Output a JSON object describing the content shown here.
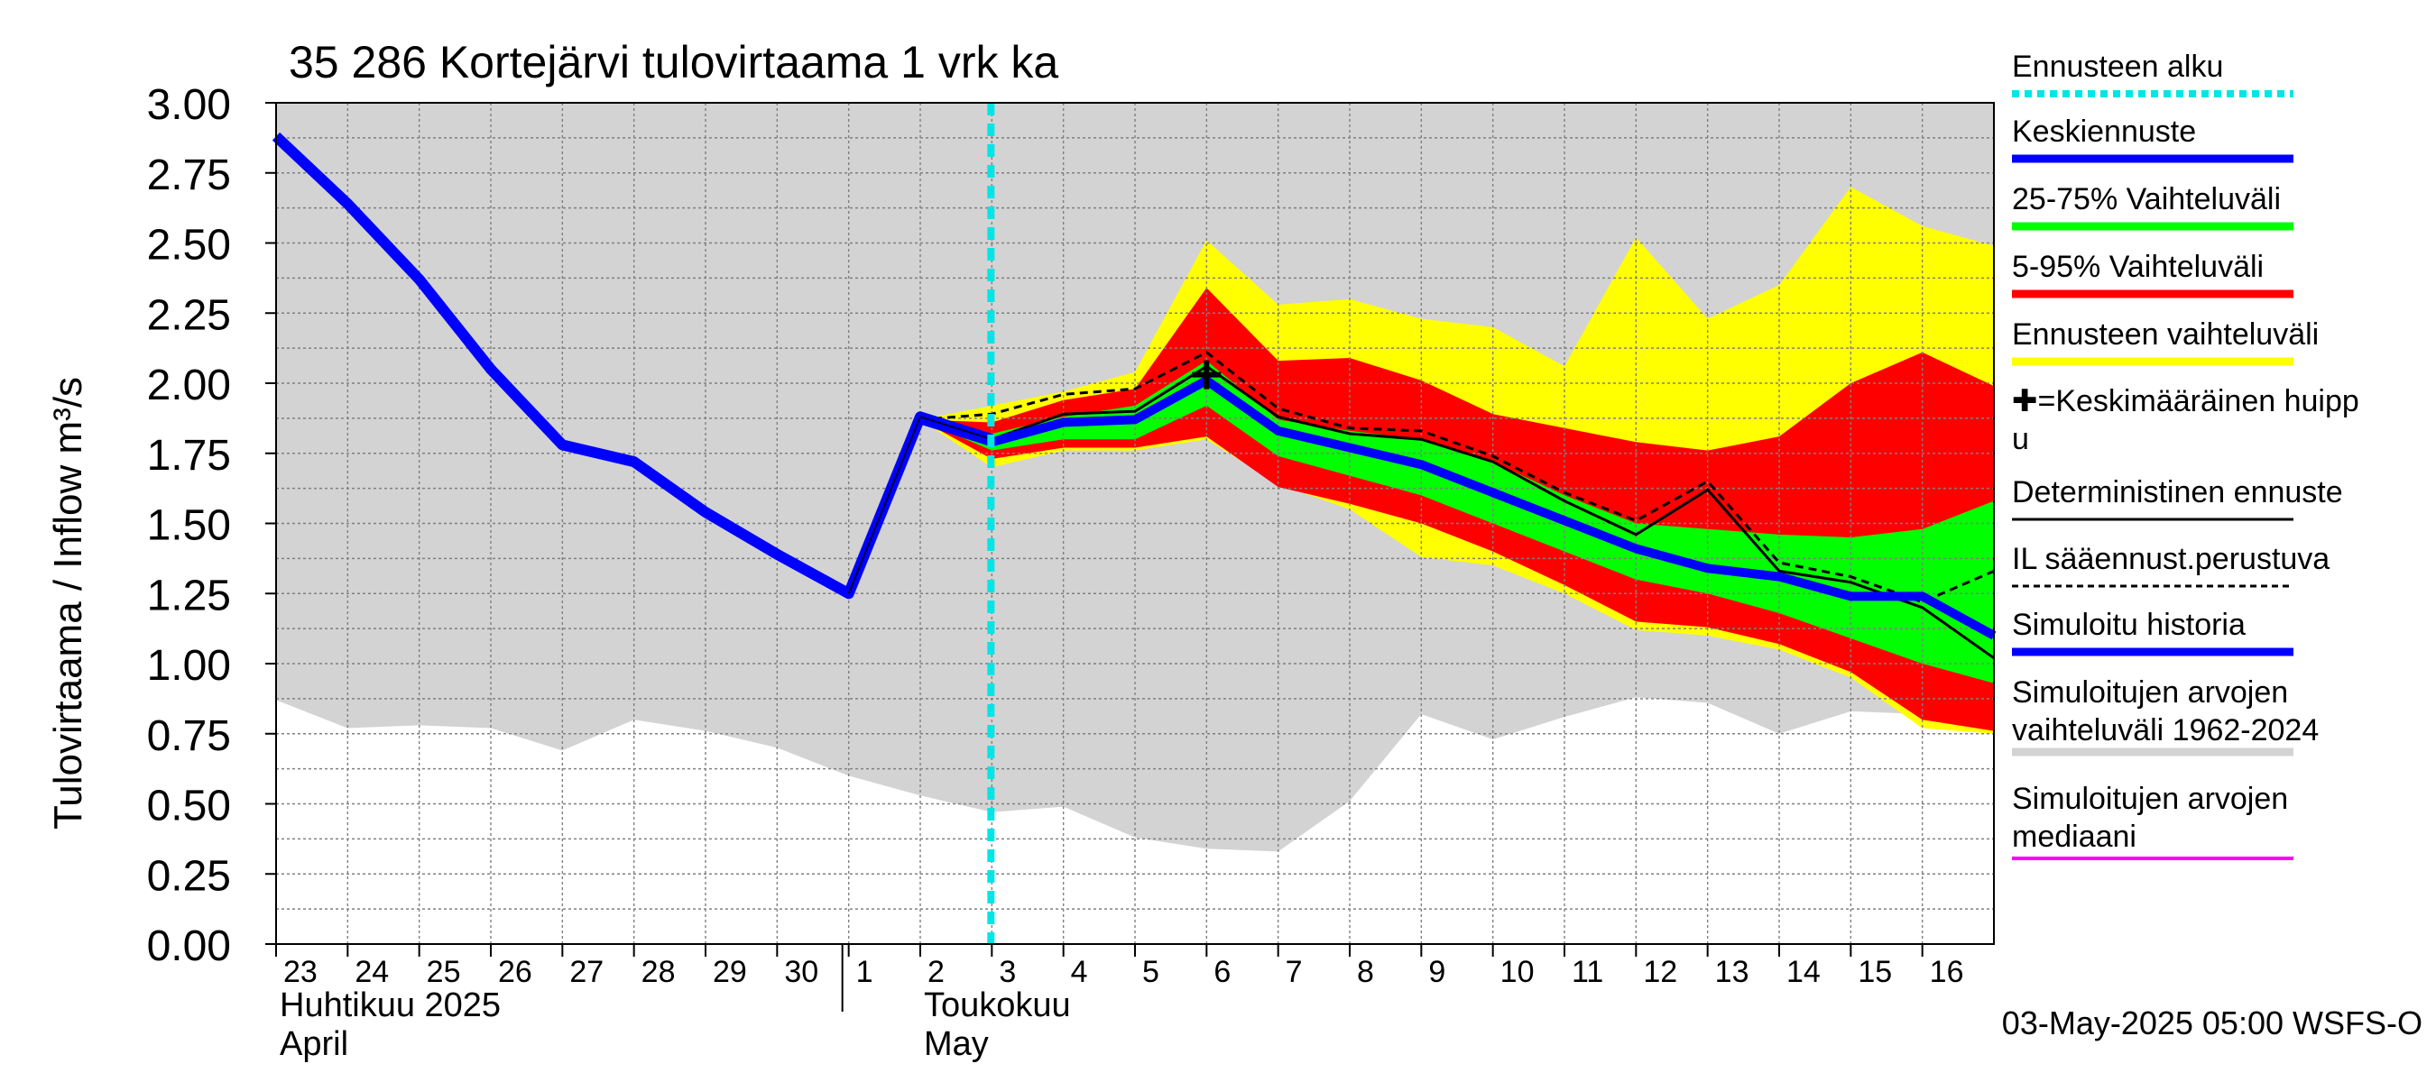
{
  "chart_data": {
    "type": "area",
    "title": "35 286 Kortejärvi tulovirtaama 1 vrk ka",
    "ylabel": "Tulovirtaama / Inflow    m³/s",
    "xlabel": "",
    "ylim": [
      0,
      3
    ],
    "y_ticks": [
      "0.00",
      "0.25",
      "0.50",
      "0.75",
      "1.00",
      "1.25",
      "1.50",
      "1.75",
      "2.00",
      "2.25",
      "2.50",
      "2.75",
      "3.00"
    ],
    "x_start_day": 0,
    "x_end_day": 24,
    "day_labels": [
      {
        "day": 0,
        "label": "23"
      },
      {
        "day": 1,
        "label": "24"
      },
      {
        "day": 2,
        "label": "25"
      },
      {
        "day": 3,
        "label": "26"
      },
      {
        "day": 4,
        "label": "27"
      },
      {
        "day": 5,
        "label": "28"
      },
      {
        "day": 6,
        "label": "29"
      },
      {
        "day": 7,
        "label": "30"
      },
      {
        "day": 8,
        "label": "1"
      },
      {
        "day": 9,
        "label": "2"
      },
      {
        "day": 10,
        "label": "3"
      },
      {
        "day": 11,
        "label": "4"
      },
      {
        "day": 12,
        "label": "5"
      },
      {
        "day": 13,
        "label": "6"
      },
      {
        "day": 14,
        "label": "7"
      },
      {
        "day": 15,
        "label": "8"
      },
      {
        "day": 16,
        "label": "9"
      },
      {
        "day": 17,
        "label": "10"
      },
      {
        "day": 18,
        "label": "11"
      },
      {
        "day": 19,
        "label": "12"
      },
      {
        "day": 20,
        "label": "13"
      },
      {
        "day": 21,
        "label": "14"
      },
      {
        "day": 22,
        "label": "15"
      },
      {
        "day": 23,
        "label": "16"
      }
    ],
    "month_labels": [
      {
        "day": 0,
        "fi": "Huhtikuu  2025",
        "en": "April"
      },
      {
        "day": 9,
        "fi": "Toukokuu",
        "en": "May"
      }
    ],
    "month_divider_day": 8,
    "forecast_start_day": 10,
    "peak_marker": {
      "x": 13,
      "y": 2.03
    },
    "footer": "03-May-2025 05:00 WSFS-O",
    "colors": {
      "sim_range": "#d3d3d3",
      "forecast_range": "#ffff00",
      "range_5_95": "#ff0000",
      "range_25_75": "#00ff00",
      "mean_forecast": "#0000ff",
      "forecast_start": "#00e5e5",
      "median": "#ff00ff",
      "grid": "#808080"
    },
    "series": [
      {
        "name": "Simuloitujen arvojen vaihteluväli 1962-2024",
        "x": [
          0,
          1,
          2,
          3,
          4,
          5,
          6,
          7,
          8,
          9,
          10,
          11,
          12,
          13,
          14,
          15,
          16,
          17,
          18,
          19,
          20,
          21,
          22,
          23,
          24
        ],
        "lower": [
          0.87,
          0.77,
          0.78,
          0.77,
          0.69,
          0.8,
          0.76,
          0.7,
          0.6,
          0.53,
          0.47,
          0.49,
          0.38,
          0.34,
          0.33,
          0.51,
          0.82,
          0.73,
          0.81,
          0.88,
          0.86,
          0.75,
          0.83,
          0.82,
          0.85
        ],
        "upper": [
          3.0,
          3.0,
          3.0,
          3.0,
          3.0,
          3.0,
          3.0,
          3.0,
          3.0,
          3.0,
          3.0,
          3.0,
          3.0,
          3.0,
          3.0,
          3.0,
          3.0,
          3.0,
          3.0,
          3.0,
          3.0,
          3.0,
          3.0,
          3.0,
          3.0
        ]
      },
      {
        "name": "Ennusteen vaihteluväli",
        "x": [
          9,
          10,
          11,
          12,
          13,
          14,
          15,
          16,
          17,
          18,
          19,
          20,
          21,
          22,
          23,
          24
        ],
        "lower": [
          1.87,
          1.7,
          1.76,
          1.76,
          1.8,
          1.64,
          1.55,
          1.38,
          1.35,
          1.25,
          1.12,
          1.1,
          1.05,
          0.95,
          0.77,
          0.75
        ],
        "upper": [
          1.87,
          1.92,
          1.97,
          2.04,
          2.51,
          2.28,
          2.3,
          2.23,
          2.2,
          2.06,
          2.52,
          2.23,
          2.35,
          2.7,
          2.56,
          2.49
        ]
      },
      {
        "name": "5-95% Vaihteluväli",
        "x": [
          9,
          10,
          11,
          12,
          13,
          14,
          15,
          16,
          17,
          18,
          19,
          20,
          21,
          22,
          23,
          24
        ],
        "lower": [
          1.87,
          1.73,
          1.77,
          1.77,
          1.81,
          1.63,
          1.57,
          1.5,
          1.4,
          1.28,
          1.15,
          1.13,
          1.07,
          0.97,
          0.8,
          0.76
        ],
        "upper": [
          1.87,
          1.86,
          1.94,
          1.98,
          2.34,
          2.08,
          2.09,
          2.01,
          1.89,
          1.84,
          1.79,
          1.76,
          1.81,
          2.0,
          2.11,
          1.99
        ]
      },
      {
        "name": "25-75% Vaihteluväli",
        "x": [
          9,
          10,
          11,
          12,
          13,
          14,
          15,
          16,
          17,
          18,
          19,
          20,
          21,
          22,
          23,
          24
        ],
        "lower": [
          1.87,
          1.76,
          1.8,
          1.8,
          1.92,
          1.74,
          1.67,
          1.6,
          1.5,
          1.4,
          1.3,
          1.25,
          1.18,
          1.09,
          1.0,
          0.93
        ],
        "upper": [
          1.87,
          1.82,
          1.88,
          1.92,
          2.08,
          1.87,
          1.83,
          1.8,
          1.72,
          1.6,
          1.5,
          1.48,
          1.46,
          1.45,
          1.48,
          1.58
        ]
      },
      {
        "name": "Keskiennuste",
        "x": [
          9,
          10,
          11,
          12,
          13,
          14,
          15,
          16,
          17,
          18,
          19,
          20,
          21,
          22,
          23,
          24
        ],
        "values": [
          1.87,
          1.79,
          1.86,
          1.87,
          2.01,
          1.83,
          1.77,
          1.71,
          1.61,
          1.51,
          1.41,
          1.34,
          1.31,
          1.24,
          1.24,
          1.1
        ]
      },
      {
        "name": "Deterministinen ennuste",
        "x": [
          9,
          10,
          11,
          12,
          13,
          14,
          15,
          16,
          17,
          18,
          19,
          20,
          21,
          22,
          23,
          24
        ],
        "values": [
          1.87,
          1.8,
          1.89,
          1.9,
          2.06,
          1.88,
          1.82,
          1.8,
          1.72,
          1.58,
          1.46,
          1.62,
          1.33,
          1.29,
          1.2,
          1.02
        ]
      },
      {
        "name": "IL sääennust.perustuva",
        "x": [
          9,
          10,
          11,
          12,
          13,
          14,
          15,
          16,
          17,
          18,
          19,
          20,
          21,
          22,
          23,
          24
        ],
        "values": [
          1.87,
          1.89,
          1.96,
          1.98,
          2.11,
          1.91,
          1.84,
          1.83,
          1.74,
          1.61,
          1.51,
          1.65,
          1.36,
          1.31,
          1.22,
          1.33
        ]
      },
      {
        "name": "Simuloitu historia",
        "x": [
          0,
          1,
          2,
          3,
          4,
          5,
          6,
          7,
          8,
          9,
          10
        ],
        "values": [
          2.88,
          2.64,
          2.37,
          2.05,
          1.78,
          1.72,
          1.54,
          1.39,
          1.25,
          1.88,
          1.8
        ]
      }
    ],
    "legend": [
      {
        "label": "Ennusteen alku",
        "swatch": "dotted-cyan"
      },
      {
        "label": "Keskiennuste",
        "swatch": "blue"
      },
      {
        "label": "25-75% Vaihteluväli",
        "swatch": "green"
      },
      {
        "label": "5-95% Vaihteluväli",
        "swatch": "red"
      },
      {
        "label": "Ennusteen vaihteluväli",
        "swatch": "yellow"
      },
      {
        "label": "✚=Keskimääräinen huipp",
        "label2": "u",
        "swatch": "none"
      },
      {
        "label": "Deterministinen ennuste",
        "swatch": "black"
      },
      {
        "label": "IL sääennust.perustuva",
        "swatch": "dashed-black"
      },
      {
        "label": "Simuloitu historia",
        "swatch": "blue"
      },
      {
        "label": "Simuloitujen arvojen",
        "label2": "vaihteluväli 1962-2024",
        "swatch": "gray"
      },
      {
        "label": "Simuloitujen arvojen",
        "label2": "mediaani",
        "swatch": "magenta"
      }
    ]
  }
}
